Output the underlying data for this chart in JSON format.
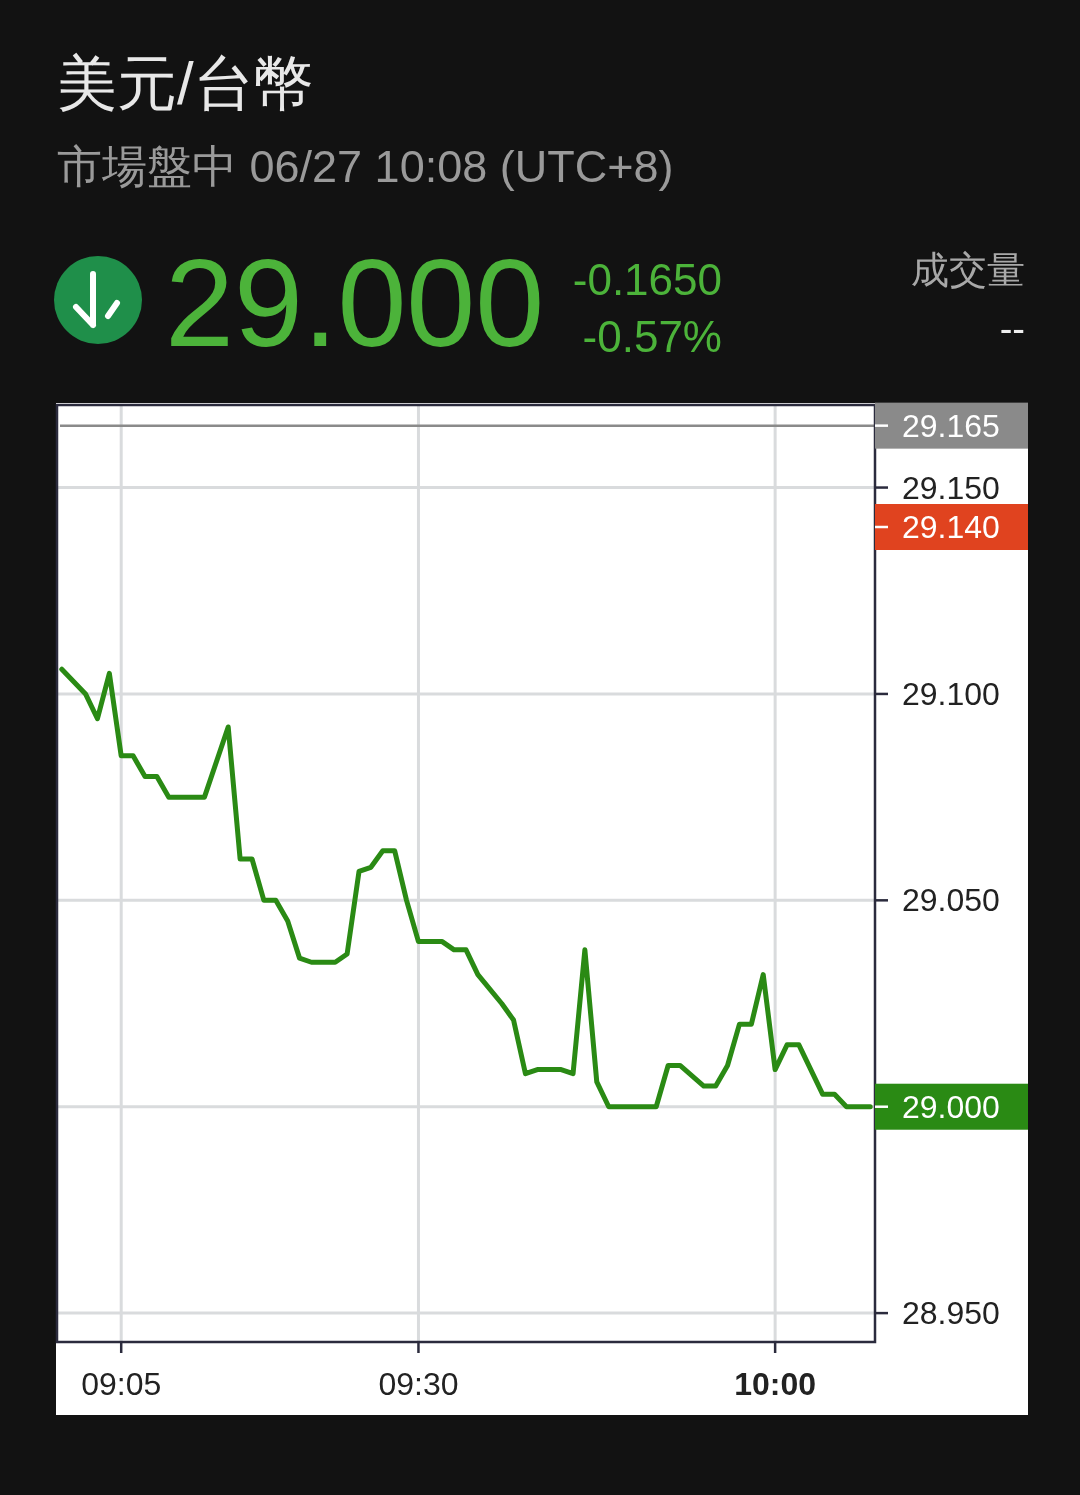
{
  "chart_data": {
    "type": "line",
    "title": "美元/台幣",
    "subtitle": "市場盤中 06/27 10:08 (UTC+8)",
    "annotations": [
      "29.000",
      "-0.1650",
      "-0.57%",
      "成交量",
      "--",
      "29.140"
    ],
    "x": [
      9,
      9.0333,
      9.05,
      9.0667,
      9.0833,
      9.1,
      9.1167,
      9.1333,
      9.15,
      9.2,
      9.2333,
      9.25,
      9.2667,
      9.2833,
      9.3,
      9.3167,
      9.3333,
      9.35,
      9.3833,
      9.4,
      9.4167,
      9.4333,
      9.45,
      9.4667,
      9.4833,
      9.5,
      9.5333,
      9.55,
      9.5667,
      9.5833,
      9.6167,
      9.6333,
      9.65,
      9.6667,
      9.7,
      9.7167,
      9.7333,
      9.75,
      9.7667,
      9.8333,
      9.85,
      9.8667,
      9.9,
      9.9167,
      9.9333,
      9.95,
      9.9667,
      9.9833,
      10,
      10.0167,
      10.0333,
      10.0667,
      10.0833,
      10.1,
      10.1333
    ],
    "series": [
      {
        "color": "#2a8a14",
        "values": [
          29.106,
          29.1,
          29.094,
          29.105,
          29.085,
          29.085,
          29.08,
          29.08,
          29.075,
          29.075,
          29.092,
          29.06,
          29.06,
          29.05,
          29.05,
          29.045,
          29.036,
          29.035,
          29.035,
          29.037,
          29.057,
          29.058,
          29.062,
          29.062,
          29.05,
          29.04,
          29.04,
          29.038,
          29.038,
          29.032,
          29.025,
          29.021,
          29.008,
          29.009,
          29.009,
          29.008,
          29.038,
          29.006,
          29.0,
          29.0,
          29.01,
          29.01,
          29.005,
          29.005,
          29.01,
          29.02,
          29.02,
          29.032,
          29.009,
          29.015,
          29.015,
          29.003,
          29.003,
          29.0,
          29.0
        ],
        "value_labels": [
          null,
          null,
          null,
          null,
          null,
          null,
          null,
          null,
          null,
          null,
          null,
          null,
          null,
          null,
          null,
          null,
          null,
          null,
          null,
          null,
          null,
          null,
          null,
          null,
          null,
          null,
          null,
          null,
          null,
          null,
          null,
          null,
          null,
          null,
          null,
          null,
          null,
          null,
          null,
          null,
          null,
          null,
          null,
          null,
          null,
          null,
          null,
          null,
          null,
          null,
          null,
          null,
          null,
          null,
          "29.000"
        ]
      }
    ],
    "xlim": [
      8.9933,
      10.14
    ],
    "ylim": [
      28.943,
      29.17
    ],
    "xticks": [
      {
        "value": 9.0833,
        "label": "09:05"
      },
      {
        "value": 9.5,
        "label": "09:30"
      },
      {
        "value": 10,
        "label": "10:00"
      }
    ],
    "yticks": [
      {
        "value": 28.95,
        "label": "28.950"
      },
      {
        "value": 29.0,
        "label": null
      },
      {
        "value": 29.05,
        "label": "29.050"
      },
      {
        "value": 29.1,
        "label": "29.100"
      },
      {
        "value": 29.15,
        "label": "29.150"
      }
    ],
    "ref_lines": [
      {
        "axis": "y",
        "value": 29.165,
        "label": "29.165",
        "color": "#8a8a8a",
        "line_style": "solid"
      }
    ],
    "grid": true
  }
}
